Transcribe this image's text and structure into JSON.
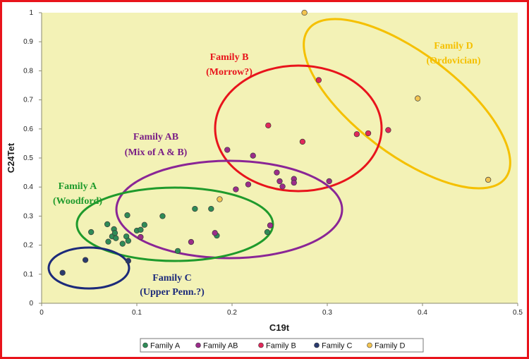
{
  "chart_data": {
    "type": "scatter",
    "xlabel": "C19t",
    "ylabel": "C24Tet",
    "xlim": [
      0,
      0.5
    ],
    "ylim": [
      0,
      1
    ],
    "x_ticks": [
      "0",
      "0.1",
      "0.2",
      "0.3",
      "0.4",
      "0.5"
    ],
    "y_ticks": [
      "0",
      "0.1",
      "0.2",
      "0.3",
      "0.4",
      "0.5",
      "0.6",
      "0.7",
      "0.8",
      "0.9",
      "1"
    ],
    "grid": false,
    "legend_position": "bottom",
    "series": [
      {
        "name": "Family A",
        "color": "#2e8b57",
        "points": [
          [
            0.052,
            0.245
          ],
          [
            0.069,
            0.272
          ],
          [
            0.07,
            0.212
          ],
          [
            0.074,
            0.23
          ],
          [
            0.076,
            0.255
          ],
          [
            0.077,
            0.242
          ],
          [
            0.078,
            0.224
          ],
          [
            0.085,
            0.205
          ],
          [
            0.089,
            0.23
          ],
          [
            0.09,
            0.303
          ],
          [
            0.091,
            0.215
          ],
          [
            0.1,
            0.25
          ],
          [
            0.104,
            0.253
          ],
          [
            0.108,
            0.27
          ],
          [
            0.127,
            0.3
          ],
          [
            0.143,
            0.18
          ],
          [
            0.161,
            0.325
          ],
          [
            0.178,
            0.325
          ],
          [
            0.184,
            0.233
          ],
          [
            0.237,
            0.245
          ]
        ]
      },
      {
        "name": "Family AB",
        "color": "#9b2c8a",
        "points": [
          [
            0.104,
            0.228
          ],
          [
            0.157,
            0.211
          ],
          [
            0.182,
            0.242
          ],
          [
            0.195,
            0.528
          ],
          [
            0.204,
            0.392
          ],
          [
            0.217,
            0.409
          ],
          [
            0.222,
            0.508
          ],
          [
            0.24,
            0.268
          ],
          [
            0.247,
            0.45
          ],
          [
            0.25,
            0.42
          ],
          [
            0.253,
            0.402
          ],
          [
            0.265,
            0.428
          ],
          [
            0.265,
            0.415
          ],
          [
            0.302,
            0.42
          ]
        ]
      },
      {
        "name": "Family B",
        "color": "#e0285a",
        "points": [
          [
            0.238,
            0.612
          ],
          [
            0.274,
            0.556
          ],
          [
            0.291,
            0.768
          ],
          [
            0.331,
            0.582
          ],
          [
            0.343,
            0.585
          ],
          [
            0.364,
            0.596
          ]
        ]
      },
      {
        "name": "Family C",
        "color": "#2a3a6e",
        "points": [
          [
            0.022,
            0.105
          ],
          [
            0.046,
            0.149
          ],
          [
            0.091,
            0.146
          ]
        ]
      },
      {
        "name": "Family D",
        "color": "#f2c451",
        "points": [
          [
            0.187,
            0.358
          ],
          [
            0.276,
            1.0
          ],
          [
            0.395,
            0.705
          ],
          [
            0.469,
            0.425
          ]
        ]
      }
    ],
    "annotations": [
      {
        "text": "Family B",
        "color": "#e8141c"
      },
      {
        "text": "(Morrow?)",
        "color": "#e8141c"
      },
      {
        "text": "Family D",
        "color": "#f5c000"
      },
      {
        "text": "(Ordovician)",
        "color": "#f5c000"
      },
      {
        "text": "Family AB",
        "color": "#7a1f86"
      },
      {
        "text": "(Mix of A & B)",
        "color": "#7a1f86"
      },
      {
        "text": "Family A",
        "color": "#1f9a2c"
      },
      {
        "text": "(Woodford)",
        "color": "#1f9a2c"
      },
      {
        "text": "Family C",
        "color": "#1c2a7a"
      },
      {
        "text": "(Upper Penn.?)",
        "color": "#1c2a7a"
      }
    ],
    "ellipse_colors": {
      "A": "#1f9a2c",
      "AB": "#8a2596",
      "B": "#e8141c",
      "C": "#1c2a7a",
      "D": "#f5c000"
    },
    "plot_background": "#f3f2b6"
  }
}
